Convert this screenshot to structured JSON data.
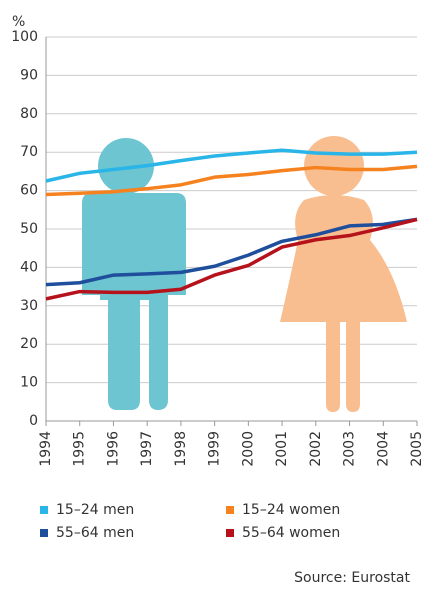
{
  "chart_data": {
    "type": "line",
    "y_axis_label": "%",
    "categories": [
      "1994",
      "1995",
      "1996",
      "1997",
      "1998",
      "1999",
      "2000",
      "2001",
      "2002",
      "2003",
      "2004",
      "2005"
    ],
    "series": [
      {
        "name": "15–24 men",
        "color": "#29b5e8",
        "values": [
          62.5,
          64.5,
          65.5,
          66.5,
          67.8,
          69,
          69.8,
          70.5,
          69.8,
          69.5,
          69.5,
          70
        ]
      },
      {
        "name": "15–24 women",
        "color": "#f5821f",
        "values": [
          59,
          59.3,
          59.7,
          60.5,
          61.5,
          63.5,
          64.2,
          65.2,
          66,
          65.5,
          65.5,
          66.3
        ]
      },
      {
        "name": "55–64 men",
        "color": "#1f4e9c",
        "values": [
          35.5,
          36,
          38,
          38.3,
          38.7,
          40.3,
          43.2,
          46.8,
          48.5,
          50.8,
          51.2,
          52.5
        ]
      },
      {
        "name": "55–64 women",
        "color": "#b5121b",
        "values": [
          31.8,
          33.7,
          33.5,
          33.5,
          34.3,
          38,
          40.5,
          45.3,
          47.2,
          48.3,
          50.3,
          52.5
        ]
      }
    ],
    "ylim": [
      0,
      100
    ],
    "yticks": [
      0,
      10,
      20,
      30,
      40,
      50,
      60,
      70,
      80,
      90,
      100
    ],
    "grid": true,
    "source": "Source: Eurostat"
  }
}
